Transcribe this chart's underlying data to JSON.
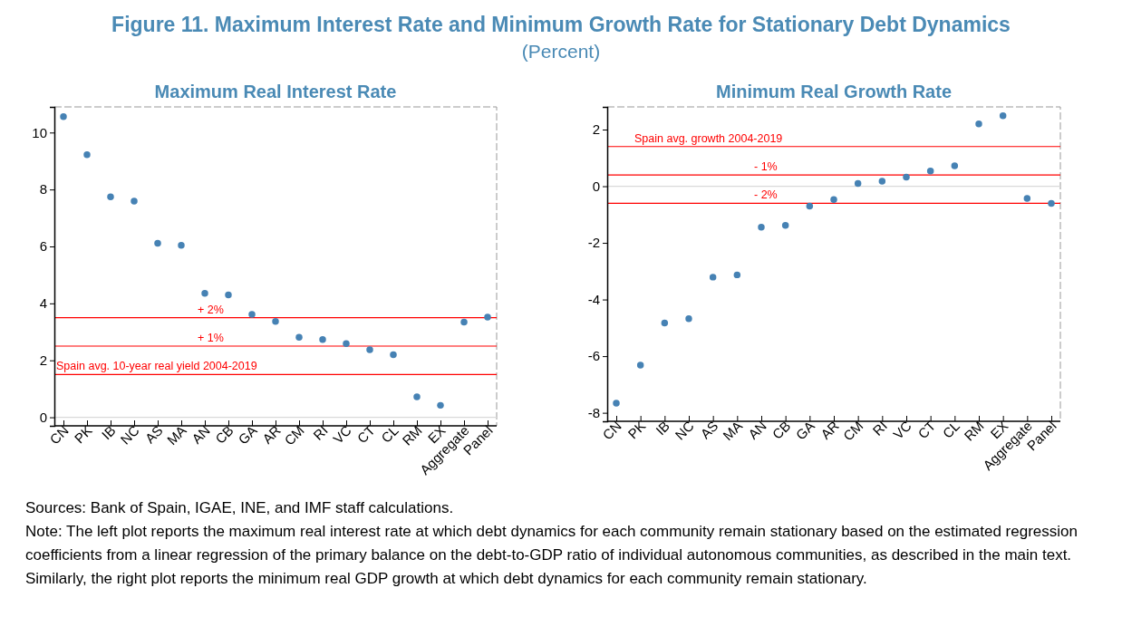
{
  "chart_data": [
    {
      "type": "other",
      "title": "Figure 11.  Maximum Interest Rate and Minimum Growth Rate for Stationary Debt Dynamics",
      "subtitle": "(Percent)"
    },
    {
      "type": "scatter",
      "title": "Maximum Real Interest Rate",
      "categories": [
        "CN",
        "PK",
        "IB",
        "NC",
        "AS",
        "MA",
        "AN",
        "CB",
        "GA",
        "AR",
        "CM",
        "RI",
        "VC",
        "CT",
        "CL",
        "RM",
        "EX",
        "Aggregate",
        "Panel"
      ],
      "values": [
        10.56,
        9.22,
        7.74,
        7.59,
        6.11,
        6.04,
        4.35,
        4.3,
        3.61,
        3.37,
        2.81,
        2.73,
        2.59,
        2.37,
        2.2,
        0.72,
        0.42,
        3.34,
        3.52
      ],
      "color": "#4682b4",
      "marker": "circle",
      "ylim": [
        -0.3,
        10.9
      ],
      "yticks": [
        0,
        2,
        4,
        6,
        8,
        10
      ],
      "ref_lines": [
        {
          "axis": "y",
          "value": 1.5,
          "label": "Spain avg. 10-year real yield 2004-2019",
          "color": "#ff0000"
        },
        {
          "axis": "y",
          "value": 2.5,
          "color": "#ff0000"
        },
        {
          "axis": "y",
          "value": 3.5,
          "color": "#ff0000"
        },
        {
          "axis": "y",
          "value": 0,
          "color": "#d9d9d9"
        }
      ],
      "annotations": [
        {
          "text": "+ 1%",
          "x": "AN",
          "y": 2.5
        },
        {
          "text": "+ 2%",
          "x": "AN",
          "y": 3.5
        }
      ]
    },
    {
      "type": "scatter",
      "title": "Minimum Real Growth Rate",
      "categories": [
        "CN",
        "PK",
        "IB",
        "NC",
        "AS",
        "MA",
        "AN",
        "CB",
        "GA",
        "AR",
        "CM",
        "RI",
        "VC",
        "CT",
        "CL",
        "RM",
        "EX",
        "Aggregate",
        "Panel"
      ],
      "values": [
        -7.66,
        -6.32,
        -4.83,
        -4.68,
        -3.21,
        -3.13,
        -1.45,
        -1.38,
        -0.7,
        -0.47,
        0.1,
        0.18,
        0.32,
        0.54,
        0.72,
        2.2,
        2.49,
        -0.43,
        -0.61
      ],
      "color": "#4682b4",
      "marker": "circle",
      "ylim": [
        -8.3,
        2.8
      ],
      "yticks": [
        -8,
        -6,
        -4,
        -2,
        0,
        2
      ],
      "ref_lines": [
        {
          "axis": "y",
          "value": 1.4,
          "label": "Spain avg. growth 2004-2019",
          "color": "#ff0000"
        },
        {
          "axis": "y",
          "value": 0.4,
          "color": "#ff0000"
        },
        {
          "axis": "y",
          "value": -0.6,
          "color": "#ff0000"
        },
        {
          "axis": "y",
          "value": 0,
          "color": "#d9d9d9"
        }
      ],
      "annotations": [
        {
          "text": "- 1%",
          "x": "AN",
          "y": 0.4
        },
        {
          "text": "- 2%",
          "x": "AN",
          "y": -0.6
        }
      ]
    },
    {
      "type": "other",
      "annotations": [
        "Sources: Bank of Spain, IGAE, INE, and IMF staff calculations.",
        "Note: The left plot reports the maximum real interest rate at which debt dynamics for each community remain stationary based on the estimated regression coefficients from a linear regression of the primary balance on the debt-to-GDP ratio of individual autonomous communities, as described in the main text. Similarly, the right plot reports the minimum real GDP growth at which debt dynamics for each community remain stationary."
      ]
    }
  ]
}
